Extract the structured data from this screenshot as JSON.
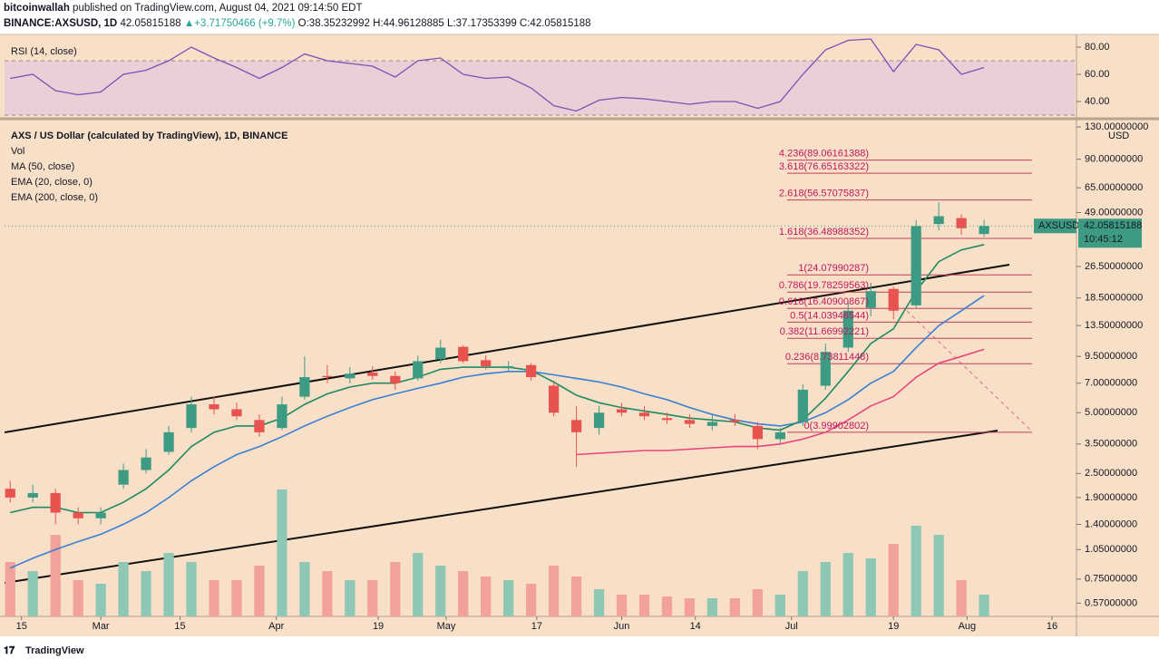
{
  "header": {
    "author": "bitcoinwallah",
    "published": "published on TradingView.com, August 04, 2021 09:14:50 EDT",
    "symbol": "BINANCE:AXSUSD, 1D",
    "last": "42.05815188",
    "change": "▲+3.71750466 (+9.7%)",
    "ohlc": "O:38.35232992 H:44.96128885 L:37.17353399 C:42.05815188"
  },
  "footer": {
    "brand": "TradingView"
  },
  "chart_data": {
    "type": "candlestick",
    "title": "AXS / US Dollar (calculated by TradingView), 1D, BINANCE",
    "x": [
      "2021-02-13",
      "2021-02-17",
      "2021-02-21",
      "2021-02-25",
      "2021-03-01",
      "2021-03-05",
      "2021-03-09",
      "2021-03-13",
      "2021-03-17",
      "2021-03-21",
      "2021-03-25",
      "2021-03-29",
      "2021-04-02",
      "2021-04-06",
      "2021-04-10",
      "2021-04-14",
      "2021-04-18",
      "2021-04-22",
      "2021-04-26",
      "2021-04-30",
      "2021-05-04",
      "2021-05-08",
      "2021-05-12",
      "2021-05-16",
      "2021-05-20",
      "2021-05-24",
      "2021-05-28",
      "2021-06-01",
      "2021-06-05",
      "2021-06-09",
      "2021-06-13",
      "2021-06-17",
      "2021-06-21",
      "2021-06-25",
      "2021-06-29",
      "2021-07-03",
      "2021-07-07",
      "2021-07-11",
      "2021-07-15",
      "2021-07-19",
      "2021-07-23",
      "2021-07-27",
      "2021-07-31",
      "2021-08-04"
    ],
    "open": [
      2.1,
      1.9,
      2.0,
      1.6,
      1.5,
      2.2,
      2.6,
      3.2,
      4.2,
      5.5,
      5.2,
      4.6,
      4.2,
      6.0,
      7.6,
      7.4,
      7.9,
      7.6,
      7.4,
      9.2,
      10.6,
      9.1,
      8.3,
      8.6,
      6.8,
      4.6,
      4.2,
      5.2,
      5.0,
      4.7,
      4.6,
      4.3,
      4.6,
      4.3,
      3.7,
      4.5,
      6.8,
      10.5,
      16.5,
      20.5,
      17,
      43,
      46,
      38.35232992
    ],
    "high": [
      2.3,
      2.2,
      2.1,
      1.7,
      1.7,
      2.8,
      3.3,
      4.3,
      6.0,
      6.0,
      5.6,
      4.9,
      6.0,
      9.5,
      8.6,
      8.4,
      8.5,
      8.0,
      9.6,
      11.5,
      10.8,
      9.6,
      9.0,
      8.8,
      7.2,
      5.4,
      5.4,
      5.6,
      5.4,
      5.0,
      4.9,
      4.9,
      4.9,
      4.5,
      4.2,
      6.9,
      11,
      17.5,
      22,
      21,
      45,
      55,
      48,
      44.96128885
    ],
    "low": [
      1.8,
      1.8,
      1.4,
      1.4,
      1.4,
      2.1,
      2.5,
      3.1,
      4.0,
      4.9,
      4.6,
      3.8,
      4.1,
      5.8,
      7.0,
      7.0,
      7.3,
      6.5,
      7.2,
      8.8,
      8.8,
      8.2,
      8.0,
      7.2,
      4.8,
      2.7,
      3.9,
      4.8,
      4.6,
      4.4,
      4.2,
      4.1,
      4.3,
      3.3,
      3.5,
      4.3,
      6.5,
      10,
      15,
      14.5,
      16.5,
      40,
      38,
      37.17353399
    ],
    "close": [
      1.9,
      2.0,
      1.6,
      1.5,
      1.6,
      2.6,
      3.0,
      4.0,
      5.5,
      5.2,
      4.8,
      4.0,
      5.5,
      7.5,
      7.5,
      7.8,
      7.6,
      7.0,
      9.0,
      10.5,
      9.0,
      8.5,
      8.5,
      7.5,
      5.0,
      4.0,
      5.0,
      5.0,
      4.8,
      4.6,
      4.4,
      4.5,
      4.5,
      3.7,
      4.0,
      6.5,
      10,
      16,
      20,
      16,
      42,
      47,
      41,
      42.05815188
    ],
    "up_color": "#3e9b83",
    "down_color": "#e8524f",
    "volume": {
      "name": "Vol",
      "values": [
        3,
        2.5,
        4.5,
        2,
        1.8,
        3,
        2.5,
        3.5,
        3,
        2,
        2,
        2.8,
        7,
        3,
        2.5,
        2,
        2,
        3,
        3.5,
        2.8,
        2.5,
        2.2,
        2,
        1.8,
        2.8,
        2.2,
        1.5,
        1.2,
        1.2,
        1.1,
        1.0,
        1.0,
        1.0,
        1.5,
        1.2,
        2.5,
        3,
        3.5,
        3.2,
        4,
        5,
        4.5,
        2,
        1.2
      ],
      "ylim": [
        0,
        10
      ],
      "up_color": "#8fc7b5",
      "down_color": "#f2a29a"
    },
    "series": [
      {
        "name": "MA (50, close)",
        "color": "#3a7fd5",
        "values": [
          0.85,
          0.95,
          1.05,
          1.15,
          1.25,
          1.4,
          1.6,
          1.9,
          2.3,
          2.7,
          3.1,
          3.4,
          3.8,
          4.3,
          4.8,
          5.3,
          5.8,
          6.2,
          6.6,
          7.0,
          7.5,
          7.8,
          8.0,
          8.0,
          7.7,
          7.4,
          7.1,
          6.7,
          6.2,
          5.8,
          5.3,
          4.9,
          4.6,
          4.4,
          4.3,
          4.5,
          5.0,
          5.8,
          7.0,
          8.0,
          10.5,
          13.5,
          16,
          19
        ]
      },
      {
        "name": "EMA (20, close, 0)",
        "color": "#1f8a60",
        "values": [
          1.6,
          1.7,
          1.7,
          1.6,
          1.6,
          1.8,
          2.1,
          2.6,
          3.4,
          4.0,
          4.3,
          4.3,
          4.7,
          5.5,
          6.2,
          6.7,
          7.0,
          7.0,
          7.5,
          8.2,
          8.4,
          8.4,
          8.4,
          8.1,
          7.1,
          6.1,
          5.6,
          5.3,
          5.1,
          4.9,
          4.7,
          4.6,
          4.5,
          4.2,
          4.1,
          4.6,
          5.9,
          8.0,
          11,
          13,
          20,
          28,
          32,
          34
        ]
      },
      {
        "name": "EMA (200, close, 0)",
        "color": "#e8457a",
        "values": [
          null,
          null,
          null,
          null,
          null,
          null,
          null,
          null,
          null,
          null,
          null,
          null,
          null,
          null,
          null,
          null,
          null,
          null,
          null,
          null,
          null,
          null,
          null,
          null,
          null,
          3.1,
          3.15,
          3.2,
          3.25,
          3.25,
          3.3,
          3.35,
          3.4,
          3.4,
          3.5,
          3.7,
          4.0,
          4.6,
          5.4,
          6.0,
          7.5,
          8.8,
          9.5,
          10.3
        ]
      }
    ],
    "fib_levels": [
      {
        "label": "4.236(89.06161388)",
        "value": 89.06161388
      },
      {
        "label": "3.618(76.65163322)",
        "value": 76.65163322
      },
      {
        "label": "2.618(56.57075837)",
        "value": 56.57075837
      },
      {
        "label": "1.618(36.48988352)",
        "value": 36.48988352
      },
      {
        "label": "1(24.07990287)",
        "value": 24.07990287
      },
      {
        "label": "0.786(19.78259563)",
        "value": 19.78259563
      },
      {
        "label": "0.618(16.40900867)",
        "value": 16.40900867
      },
      {
        "label": "0.5(14.03946544)",
        "value": 14.03946544
      },
      {
        "label": "0.382(11.66992221)",
        "value": 11.66992221
      },
      {
        "label": "0.236(8.73811448)",
        "value": 8.73811448
      },
      {
        "label": "0(3.99902802)",
        "value": 3.99902802
      }
    ],
    "fib_color": "#c0405c",
    "log_scale": true,
    "grid": false,
    "ylim": [
      0.49,
      137
    ],
    "yticks": [
      {
        "value": 130,
        "label": "130.00000000"
      },
      {
        "value": 90,
        "label": "90.00000000"
      },
      {
        "value": 65,
        "label": "65.00000000"
      },
      {
        "value": 49,
        "label": "49.00000000"
      },
      {
        "value": 26.5,
        "label": "26.50000000"
      },
      {
        "value": 18.5,
        "label": "18.50000000"
      },
      {
        "value": 13.5,
        "label": "13.50000000"
      },
      {
        "value": 9.5,
        "label": "9.50000000"
      },
      {
        "value": 7,
        "label": "7.00000000"
      },
      {
        "value": 5,
        "label": "5.00000000"
      },
      {
        "value": 3.5,
        "label": "3.50000000"
      },
      {
        "value": 2.5,
        "label": "2.50000000"
      },
      {
        "value": 1.9,
        "label": "1.90000000"
      },
      {
        "value": 1.4,
        "label": "1.40000000"
      },
      {
        "value": 1.05,
        "label": "1.05000000"
      },
      {
        "value": 0.75,
        "label": "0.75000000"
      },
      {
        "value": 0.57,
        "label": "0.57000000"
      }
    ],
    "y_unit": "USD",
    "xlim": [
      "2021-02-12",
      "2021-08-20"
    ],
    "xticks": [
      {
        "value": "2021-02-15",
        "label": "15"
      },
      {
        "value": "2021-03-01",
        "label": "Mar"
      },
      {
        "value": "2021-03-15",
        "label": "15"
      },
      {
        "value": "2021-04-01",
        "label": "Apr"
      },
      {
        "value": "2021-04-19",
        "label": "19"
      },
      {
        "value": "2021-05-01",
        "label": "May"
      },
      {
        "value": "2021-05-17",
        "label": "17"
      },
      {
        "value": "2021-06-01",
        "label": "Jun"
      },
      {
        "value": "2021-06-14",
        "label": "14"
      },
      {
        "value": "2021-07-01",
        "label": "Jul"
      },
      {
        "value": "2021-07-19",
        "label": "19"
      },
      {
        "value": "2021-08-01",
        "label": "Aug"
      },
      {
        "value": "2021-08-16",
        "label": "16"
      }
    ],
    "price_tag": {
      "symbol": "AXSUSD",
      "countdown": "10:45:12",
      "color": "#3e9b83"
    },
    "rsi": {
      "name": "RSI (14, close)",
      "color": "#7e4fb8",
      "values": [
        57,
        60,
        48,
        45,
        47,
        60,
        63,
        70,
        80,
        72,
        65,
        57,
        65,
        75,
        70,
        68,
        66,
        58,
        70,
        72,
        60,
        57,
        58,
        50,
        37,
        33,
        41,
        43,
        42,
        40,
        38,
        40,
        40,
        35,
        40,
        60,
        78,
        85,
        86,
        62,
        82,
        78,
        60,
        65
      ],
      "ylim": [
        28,
        88
      ],
      "yticks": [
        {
          "value": 80,
          "label": "80.00"
        },
        {
          "value": 60,
          "label": "60.00"
        },
        {
          "value": 40,
          "label": "40.00"
        }
      ],
      "band": [
        30,
        70
      ],
      "band_color": "#ebcfd6"
    }
  }
}
